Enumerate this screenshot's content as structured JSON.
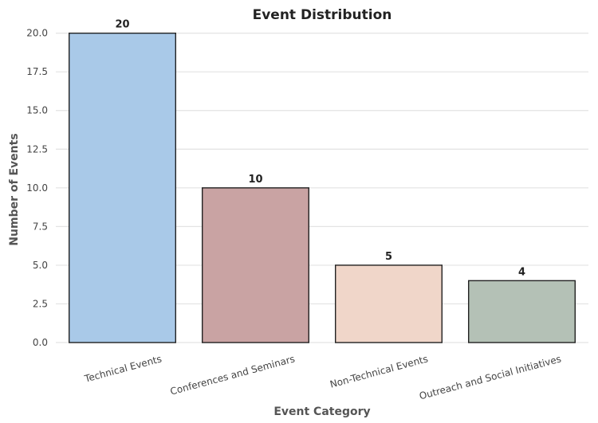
{
  "chart_data": {
    "type": "bar",
    "title": "Event Distribution",
    "xlabel": "Event Category",
    "ylabel": "Number of Events",
    "categories": [
      "Technical Events",
      "Conferences and Seminars",
      "Non-Technical Events",
      "Outreach and Social Initiatives"
    ],
    "values": [
      20,
      10,
      5,
      4
    ],
    "data_labels": [
      "20",
      "10",
      "5",
      "4"
    ],
    "colors": [
      "#a9c9e8",
      "#c9a3a3",
      "#f0d6c9",
      "#b4c1b6"
    ],
    "ylim": [
      0,
      20.6
    ],
    "yticks": [
      0.0,
      2.5,
      5.0,
      7.5,
      10.0,
      12.5,
      15.0,
      17.5,
      20.0
    ],
    "ytick_labels": [
      "0.0",
      "2.5",
      "5.0",
      "7.5",
      "10.0",
      "12.5",
      "15.0",
      "17.5",
      "20.0"
    ],
    "grid": true,
    "x_tick_rotation_deg": 15
  }
}
